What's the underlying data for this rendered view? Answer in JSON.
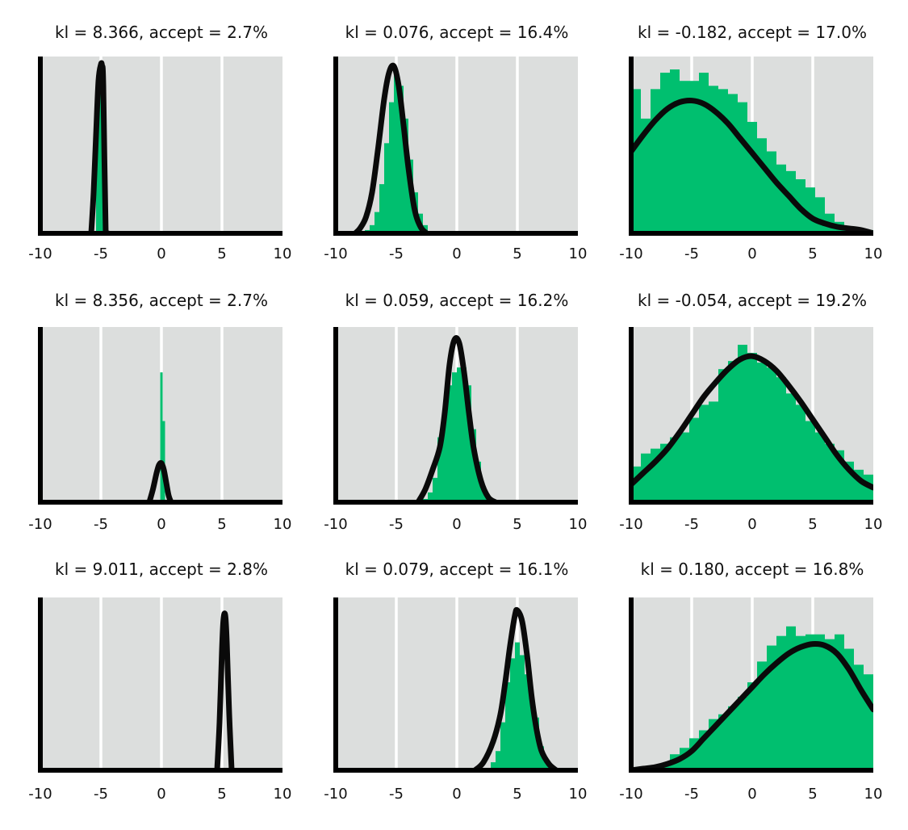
{
  "colors": {
    "panel_background": "#dcdedd",
    "gridline": "#ffffff",
    "histogram": "#00bf6f",
    "density_line": "#0a0a0a",
    "axis": "#000000",
    "text": "#111111"
  },
  "chart_data": [
    {
      "type": "bar",
      "title": "kl = 8.366, accept = 2.7%",
      "xlim": [
        -10,
        10
      ],
      "xticks": [
        -10,
        -5,
        0,
        5,
        10
      ],
      "xtick_labels": [
        "-10",
        "-5",
        "0",
        "5",
        "10"
      ],
      "ylim": [
        0,
        1
      ],
      "grid": "vertical",
      "histogram": {
        "bin_edges": [
          -5.6,
          -5.4,
          -5.2,
          -5.0,
          -4.8,
          -4.6,
          -4.4
        ],
        "heights": [
          0.0,
          0.72,
          0.88,
          0.94,
          0.83,
          0.0
        ]
      },
      "density": {
        "x": [
          -5.8,
          -5.6,
          -5.4,
          -5.2,
          -5.0,
          -4.9,
          -4.8,
          -4.6,
          -4.4
        ],
        "y": [
          0.0,
          0.25,
          0.6,
          0.93,
          1.03,
          1.02,
          0.9,
          0.0,
          0.0
        ]
      }
    },
    {
      "type": "bar",
      "title": "kl = 0.076, accept = 16.4%",
      "xlim": [
        -10,
        10
      ],
      "xticks": [
        -10,
        -5,
        0,
        5,
        10
      ],
      "xtick_labels": [
        "-10",
        "-5",
        "0",
        "5",
        "10"
      ],
      "ylim": [
        0,
        1
      ],
      "grid": "vertical",
      "histogram": {
        "bin_edges": [
          -7.6,
          -7.2,
          -6.8,
          -6.4,
          -6.0,
          -5.6,
          -5.2,
          -4.8,
          -4.4,
          -4.0,
          -3.6,
          -3.2,
          -2.8,
          -2.4
        ],
        "heights": [
          0.02,
          0.05,
          0.13,
          0.3,
          0.55,
          0.8,
          0.98,
          0.9,
          0.7,
          0.45,
          0.25,
          0.12,
          0.05
        ]
      },
      "density": {
        "x": [
          -8.4,
          -8.0,
          -7.5,
          -7.0,
          -6.5,
          -6.0,
          -5.6,
          -5.2,
          -4.8,
          -4.4,
          -4.0,
          -3.5,
          -3.0,
          -2.5
        ],
        "y": [
          0.0,
          0.03,
          0.1,
          0.25,
          0.52,
          0.82,
          0.98,
          1.02,
          0.9,
          0.66,
          0.4,
          0.15,
          0.04,
          0.0
        ]
      }
    },
    {
      "type": "bar",
      "title": "kl = -0.182, accept = 17.0%",
      "xlim": [
        -10,
        10
      ],
      "xticks": [
        -10,
        -5,
        0,
        5,
        10
      ],
      "xtick_labels": [
        "-10",
        "-5",
        "0",
        "5",
        "10"
      ],
      "ylim": [
        0,
        1
      ],
      "grid": "vertical",
      "histogram": {
        "bin_edges": [
          -10,
          -9.2,
          -8.4,
          -7.6,
          -6.8,
          -6.0,
          -5.2,
          -4.4,
          -3.6,
          -2.8,
          -2.0,
          -1.2,
          -0.4,
          0.4,
          1.2,
          2.0,
          2.8,
          3.6,
          4.4,
          5.2,
          6.0,
          6.8,
          7.6,
          8.4,
          9.2,
          10
        ],
        "heights": [
          0.88,
          0.7,
          0.88,
          0.98,
          1.0,
          0.93,
          0.93,
          0.98,
          0.9,
          0.88,
          0.85,
          0.8,
          0.68,
          0.58,
          0.5,
          0.42,
          0.38,
          0.33,
          0.28,
          0.22,
          0.12,
          0.07,
          0.04,
          0.03,
          0.02
        ]
      },
      "density": {
        "x": [
          -10,
          -9,
          -8,
          -7,
          -6,
          -5,
          -4,
          -3,
          -2,
          -1,
          0,
          1,
          2,
          3,
          4,
          5,
          6,
          7,
          8,
          9,
          10
        ],
        "y": [
          0.5,
          0.6,
          0.69,
          0.76,
          0.8,
          0.81,
          0.79,
          0.74,
          0.67,
          0.58,
          0.49,
          0.4,
          0.31,
          0.23,
          0.15,
          0.09,
          0.06,
          0.04,
          0.03,
          0.02,
          0.0
        ]
      }
    },
    {
      "type": "bar",
      "title": "kl = 8.356, accept = 2.7%",
      "xlim": [
        -10,
        10
      ],
      "xticks": [
        -10,
        -5,
        0,
        5,
        10
      ],
      "xtick_labels": [
        "-10",
        "-5",
        "0",
        "5",
        "10"
      ],
      "ylim": [
        0,
        1
      ],
      "grid": "vertical",
      "histogram": {
        "bin_edges": [
          -0.4,
          -0.1,
          0.1,
          0.3,
          0.5
        ],
        "heights": [
          0.0,
          0.8,
          0.5,
          0.0
        ]
      },
      "density": {
        "x": [
          -1.0,
          -0.7,
          -0.4,
          -0.2,
          0.0,
          0.2,
          0.4,
          0.6,
          0.8
        ],
        "y": [
          0.0,
          0.08,
          0.18,
          0.23,
          0.24,
          0.2,
          0.12,
          0.04,
          0.0
        ]
      }
    },
    {
      "type": "bar",
      "title": "kl = 0.059, accept = 16.2%",
      "xlim": [
        -10,
        10
      ],
      "xticks": [
        -10,
        -5,
        0,
        5,
        10
      ],
      "xtick_labels": [
        "-10",
        "-5",
        "0",
        "5",
        "10"
      ],
      "ylim": [
        0,
        1
      ],
      "grid": "vertical",
      "histogram": {
        "bin_edges": [
          -2.8,
          -2.4,
          -2.0,
          -1.6,
          -1.2,
          -0.8,
          -0.4,
          0.0,
          0.4,
          0.8,
          1.2,
          1.6,
          2.0,
          2.4,
          2.8
        ],
        "heights": [
          0.02,
          0.06,
          0.15,
          0.4,
          0.55,
          0.72,
          0.8,
          0.83,
          0.83,
          0.72,
          0.45,
          0.25,
          0.1,
          0.04
        ]
      },
      "density": {
        "x": [
          -3.2,
          -2.6,
          -2.0,
          -1.4,
          -1.0,
          -0.6,
          -0.2,
          0.2,
          0.6,
          1.0,
          1.4,
          2.0,
          2.6,
          3.2
        ],
        "y": [
          0.0,
          0.08,
          0.2,
          0.34,
          0.55,
          0.85,
          1.0,
          0.98,
          0.8,
          0.55,
          0.33,
          0.13,
          0.03,
          0.0
        ]
      }
    },
    {
      "type": "bar",
      "title": "kl = -0.054, accept = 19.2%",
      "xlim": [
        -10,
        10
      ],
      "xticks": [
        -10,
        -5,
        0,
        5,
        10
      ],
      "xtick_labels": [
        "-10",
        "-5",
        "0",
        "5",
        "10"
      ],
      "ylim": [
        0,
        1
      ],
      "grid": "vertical",
      "histogram": {
        "bin_edges": [
          -10,
          -9.2,
          -8.4,
          -7.6,
          -6.8,
          -6.0,
          -5.2,
          -4.4,
          -3.6,
          -2.8,
          -2.0,
          -1.2,
          -0.4,
          0.4,
          1.2,
          2.0,
          2.8,
          3.6,
          4.4,
          5.2,
          6.0,
          6.8,
          7.6,
          8.4,
          9.2,
          10
        ],
        "heights": [
          0.22,
          0.3,
          0.33,
          0.36,
          0.4,
          0.43,
          0.52,
          0.6,
          0.62,
          0.82,
          0.87,
          0.97,
          0.92,
          0.86,
          0.83,
          0.77,
          0.67,
          0.6,
          0.5,
          0.43,
          0.36,
          0.32,
          0.25,
          0.2,
          0.17
        ]
      },
      "density": {
        "x": [
          -10,
          -9,
          -8,
          -7,
          -6,
          -5,
          -4,
          -3,
          -2,
          -1,
          0,
          1,
          2,
          3,
          4,
          5,
          6,
          7,
          8,
          9,
          10
        ],
        "y": [
          0.11,
          0.18,
          0.25,
          0.33,
          0.43,
          0.54,
          0.65,
          0.74,
          0.82,
          0.88,
          0.9,
          0.87,
          0.81,
          0.72,
          0.62,
          0.51,
          0.4,
          0.29,
          0.2,
          0.13,
          0.09
        ]
      }
    },
    {
      "type": "bar",
      "title": "kl = 9.011, accept = 2.8%",
      "xlim": [
        -10,
        10
      ],
      "xticks": [
        -10,
        -5,
        0,
        5,
        10
      ],
      "xtick_labels": [
        "-10",
        "-5",
        "0",
        "5",
        "10"
      ],
      "ylim": [
        0,
        1
      ],
      "grid": "vertical",
      "histogram": {
        "bin_edges": [
          4.8,
          5.0,
          5.2,
          5.4,
          5.6
        ],
        "heights": [
          0.0,
          0.0,
          0.0,
          0.0
        ]
      },
      "density": {
        "x": [
          4.6,
          4.8,
          5.0,
          5.1,
          5.2,
          5.3,
          5.4,
          5.6,
          5.8
        ],
        "y": [
          0.0,
          0.3,
          0.75,
          0.92,
          0.98,
          0.95,
          0.8,
          0.35,
          0.0
        ]
      }
    },
    {
      "type": "bar",
      "title": "kl = 0.079, accept = 16.1%",
      "xlim": [
        -10,
        10
      ],
      "xticks": [
        -10,
        -5,
        0,
        5,
        10
      ],
      "xtick_labels": [
        "-10",
        "-5",
        "0",
        "5",
        "10"
      ],
      "ylim": [
        0,
        1
      ],
      "grid": "vertical",
      "histogram": {
        "bin_edges": [
          2.8,
          3.2,
          3.6,
          4.0,
          4.4,
          4.8,
          5.2,
          5.6,
          6.0,
          6.4,
          6.8,
          7.2,
          7.6,
          8.0
        ],
        "heights": [
          0.05,
          0.12,
          0.3,
          0.55,
          0.7,
          0.8,
          0.72,
          0.6,
          0.47,
          0.33,
          0.15,
          0.07,
          0.03
        ]
      },
      "density": {
        "x": [
          1.5,
          2.2,
          3.0,
          3.6,
          4.0,
          4.4,
          4.8,
          5.0,
          5.4,
          5.8,
          6.2,
          6.6,
          7.0,
          7.6,
          8.2
        ],
        "y": [
          0.0,
          0.05,
          0.18,
          0.35,
          0.55,
          0.78,
          0.97,
          1.0,
          0.93,
          0.72,
          0.45,
          0.25,
          0.12,
          0.04,
          0.0
        ]
      }
    },
    {
      "type": "bar",
      "title": "kl = 0.180, accept = 16.8%",
      "xlim": [
        -10,
        10
      ],
      "xticks": [
        -10,
        -5,
        0,
        5,
        10
      ],
      "xtick_labels": [
        "-10",
        "-5",
        "0",
        "5",
        "10"
      ],
      "ylim": [
        0,
        1
      ],
      "grid": "vertical",
      "histogram": {
        "bin_edges": [
          -10,
          -9.2,
          -8.4,
          -7.6,
          -6.8,
          -6.0,
          -5.2,
          -4.4,
          -3.6,
          -2.8,
          -2.0,
          -1.2,
          -0.4,
          0.4,
          1.2,
          2.0,
          2.8,
          3.6,
          4.4,
          5.2,
          6.0,
          6.8,
          7.6,
          8.4,
          9.2,
          10
        ],
        "heights": [
          0.0,
          0.0,
          0.01,
          0.03,
          0.1,
          0.14,
          0.2,
          0.25,
          0.32,
          0.35,
          0.4,
          0.46,
          0.55,
          0.68,
          0.78,
          0.84,
          0.9,
          0.84,
          0.85,
          0.85,
          0.82,
          0.85,
          0.76,
          0.66,
          0.6
        ]
      },
      "density": {
        "x": [
          -10,
          -9,
          -8,
          -7,
          -6,
          -5,
          -4,
          -3,
          -2,
          -1,
          0,
          1,
          2,
          3,
          4,
          5,
          6,
          7,
          8,
          9,
          10
        ],
        "y": [
          0.0,
          0.01,
          0.02,
          0.04,
          0.07,
          0.12,
          0.2,
          0.28,
          0.36,
          0.44,
          0.52,
          0.6,
          0.67,
          0.73,
          0.77,
          0.79,
          0.78,
          0.73,
          0.63,
          0.5,
          0.38
        ]
      }
    }
  ]
}
